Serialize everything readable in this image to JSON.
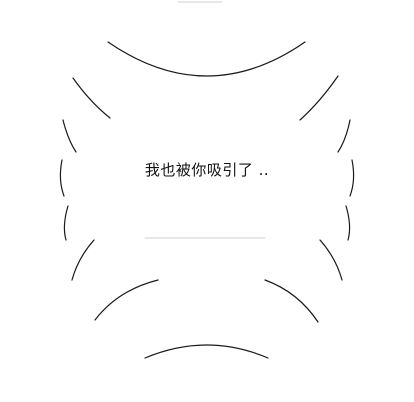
{
  "speech_bubble": {
    "text": "我也被你吸引了 .."
  }
}
